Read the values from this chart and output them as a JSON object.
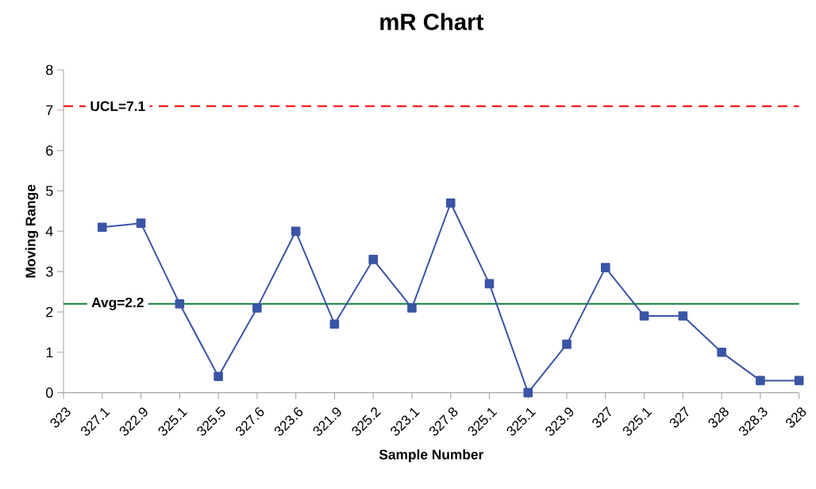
{
  "chart_data": {
    "type": "line",
    "title": "mR Chart",
    "xlabel": "Sample Number",
    "ylabel": "Moving Range",
    "categories": [
      "323",
      "327.1",
      "322.9",
      "325.1",
      "325.5",
      "327.6",
      "323.6",
      "321.9",
      "325.2",
      "323.1",
      "327.8",
      "325.1",
      "325.1",
      "323.9",
      "327",
      "325.1",
      "327",
      "328",
      "328.3",
      "328"
    ],
    "series": [
      {
        "color": "#3a55a5",
        "values": [
          null,
          4.1,
          4.2,
          2.2,
          0.4,
          2.1,
          4.0,
          1.7,
          3.3,
          2.1,
          4.7,
          2.7,
          0.0,
          1.2,
          3.1,
          1.9,
          1.9,
          1.0,
          0.3,
          0.3
        ]
      }
    ],
    "ylim": [
      0,
      8
    ],
    "yticks": [
      0,
      1,
      2,
      3,
      4,
      5,
      6,
      7,
      8
    ],
    "marker": "square",
    "line_style": "solid",
    "ref_lines": [
      {
        "axis": "y",
        "value": 7.1,
        "label": "UCL=7.1",
        "color": "#ff0000",
        "line_style": "dashed"
      },
      {
        "axis": "y",
        "value": 2.2,
        "label": "Avg=2.2",
        "color": "#107c3a",
        "line_style": "solid"
      }
    ]
  }
}
